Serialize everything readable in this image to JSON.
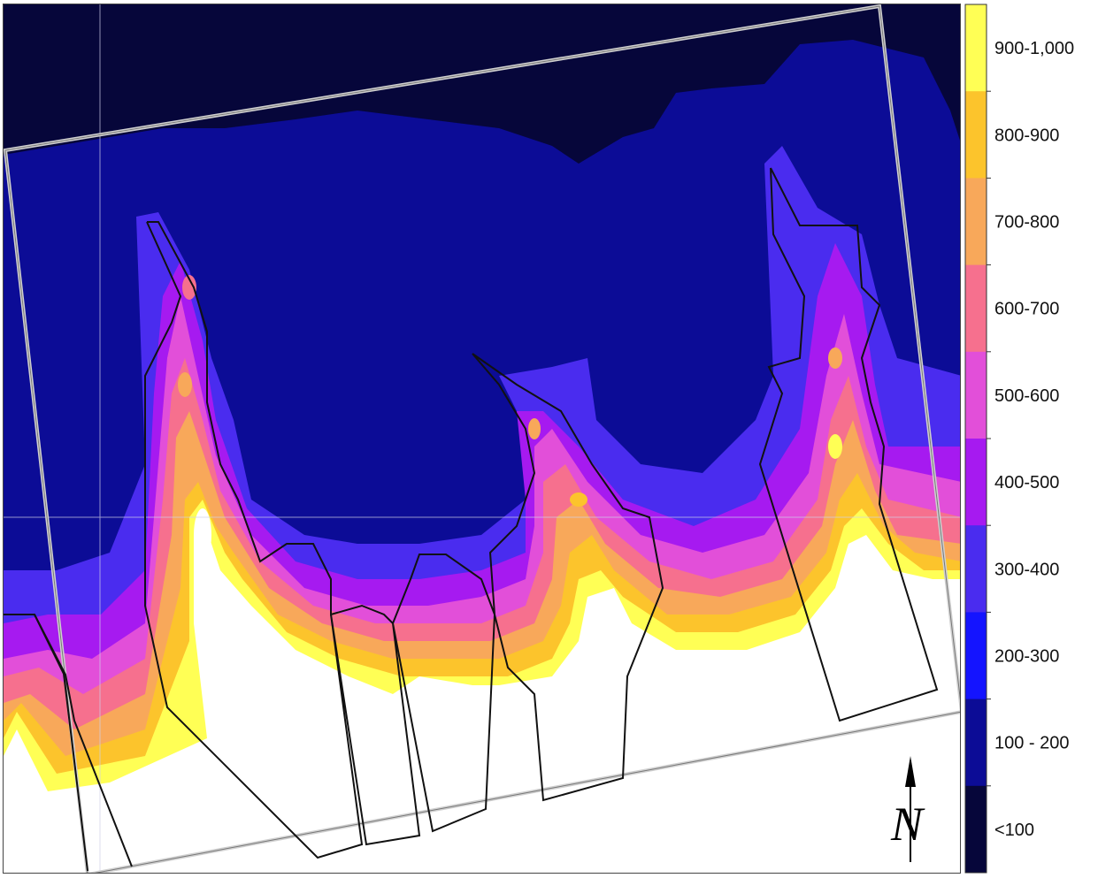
{
  "legend": {
    "classes": [
      {
        "label": "900-1,000",
        "color": "#ffff55"
      },
      {
        "label": "800-900",
        "color": "#fcc42c"
      },
      {
        "label": "700-800",
        "color": "#f8a85a"
      },
      {
        "label": "600-700",
        "color": "#f6708e"
      },
      {
        "label": "500-600",
        "color": "#e24fd9"
      },
      {
        "label": "400-500",
        "color": "#a61af0"
      },
      {
        "label": "300-400",
        "color": "#4a2cef"
      },
      {
        "label": "200-300",
        "color": "#1414ff"
      },
      {
        "label": "100 - 200",
        "color": "#0c0c96"
      },
      {
        "label": "<100",
        "color": "#06063a"
      }
    ]
  },
  "colors": {
    "background_low": "#06063a",
    "base": "#0c0c96",
    "band_300": "#4a2cef",
    "band_400": "#a61af0",
    "band_500": "#e24fd9",
    "band_600": "#f6708e",
    "band_700": "#f8a85a",
    "band_800": "#fcc42c",
    "band_900": "#ffff55",
    "high": "#ffffff"
  },
  "north_arrow": {
    "letter": "N",
    "icon": "north-arrow-icon"
  }
}
